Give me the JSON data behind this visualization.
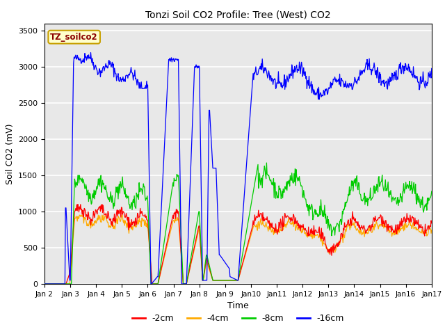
{
  "title": "Tonzi Soil CO2 Profile: Tree (West) CO2",
  "ylabel": "Soil CO2 (mV)",
  "xlabel": "Time",
  "legend_label": "TZ_soilco2",
  "ylim": [
    0,
    3600
  ],
  "yticks": [
    0,
    500,
    1000,
    1500,
    2000,
    2500,
    3000,
    3500
  ],
  "series_labels": [
    "-2cm",
    "-4cm",
    "-8cm",
    "-16cm"
  ],
  "series_colors": [
    "#ff0000",
    "#ffaa00",
    "#00cc00",
    "#0000ff"
  ],
  "fig_bg_color": "#ffffff",
  "plot_bg_color": "#e8e8e8",
  "title_fontsize": 10,
  "axis_label_fontsize": 9,
  "tick_fontsize": 8
}
